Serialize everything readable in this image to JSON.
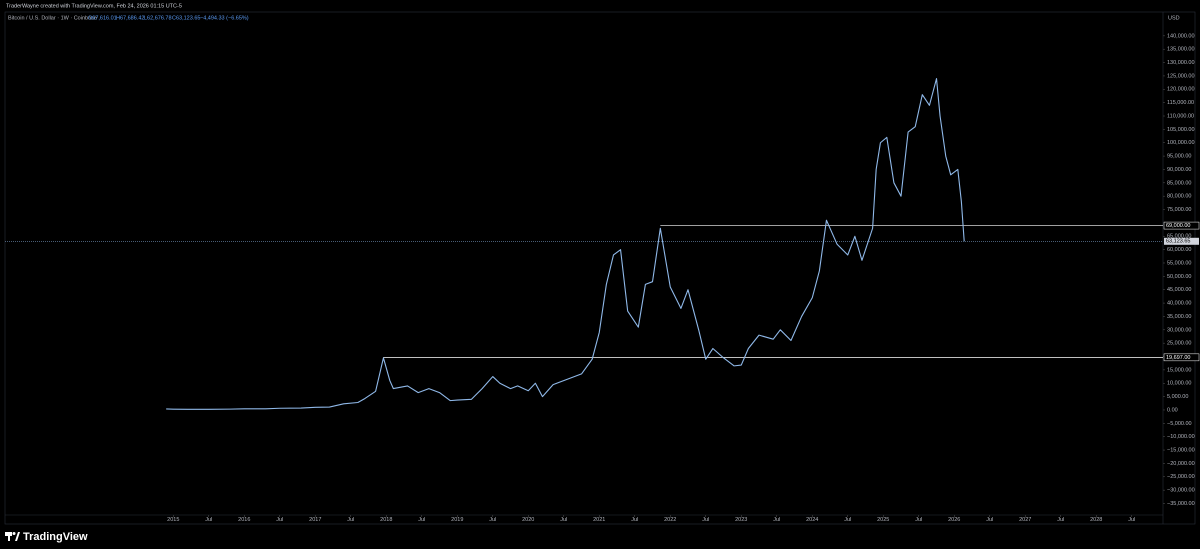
{
  "header": {
    "credit": "TraderWayne created with TradingView.com, Feb 24, 2026 01:15 UTC-5"
  },
  "legend": {
    "symbol": "Bitcoin / U.S. Dollar · 1W · Coinbase",
    "open": "O67,616.01",
    "high": "H67,686.42",
    "low": "L62,676.78",
    "close": "C63,123.65",
    "change": "−4,494.33 (−6.65%)"
  },
  "chart_data": {
    "type": "line",
    "currency": "USD",
    "color": "#8fb8e8",
    "x": [
      2014.9,
      2015.0,
      2015.2,
      2015.5,
      2015.8,
      2016.0,
      2016.3,
      2016.5,
      2016.8,
      2017.0,
      2017.2,
      2017.4,
      2017.6,
      2017.7,
      2017.85,
      2017.96,
      2018.05,
      2018.1,
      2018.3,
      2018.45,
      2018.6,
      2018.75,
      2018.9,
      2019.0,
      2019.2,
      2019.35,
      2019.5,
      2019.6,
      2019.75,
      2019.85,
      2020.0,
      2020.1,
      2020.2,
      2020.35,
      2020.55,
      2020.75,
      2020.9,
      2021.0,
      2021.1,
      2021.2,
      2021.3,
      2021.4,
      2021.55,
      2021.65,
      2021.75,
      2021.86,
      2022.0,
      2022.15,
      2022.25,
      2022.4,
      2022.5,
      2022.6,
      2022.75,
      2022.9,
      2023.0,
      2023.1,
      2023.25,
      2023.45,
      2023.55,
      2023.7,
      2023.85,
      2024.0,
      2024.1,
      2024.2,
      2024.35,
      2024.5,
      2024.6,
      2024.7,
      2024.85,
      2024.9,
      2024.96,
      2025.05,
      2025.15,
      2025.25,
      2025.35,
      2025.45,
      2025.55,
      2025.65,
      2025.75,
      2025.8,
      2025.88,
      2025.95,
      2026.05,
      2026.1,
      2026.14
    ],
    "values": [
      380,
      300,
      250,
      260,
      320,
      430,
      420,
      650,
      700,
      1000,
      1100,
      2300,
      2800,
      4300,
      7000,
      19500,
      11000,
      8000,
      9000,
      6500,
      8000,
      6500,
      3500,
      3700,
      4000,
      8000,
      12500,
      10000,
      8000,
      9000,
      7200,
      10000,
      5000,
      9500,
      11500,
      13500,
      19000,
      29000,
      47000,
      58000,
      60000,
      37000,
      31000,
      47000,
      48000,
      68000,
      46000,
      38000,
      45000,
      30000,
      19000,
      23000,
      19500,
      16500,
      16800,
      23000,
      28000,
      26500,
      30000,
      26000,
      35000,
      42000,
      52000,
      71000,
      62000,
      58000,
      65000,
      56000,
      68000,
      90000,
      100000,
      102000,
      85000,
      80000,
      104000,
      106000,
      118000,
      114000,
      124000,
      110000,
      95000,
      88000,
      90000,
      78000,
      63123.65
    ],
    "levels": [
      {
        "value": 69000,
        "label": "69,000.00",
        "from": 2021.86
      },
      {
        "value": 19697,
        "label": "19,697.00",
        "from": 2017.96
      }
    ],
    "last_price": {
      "value": 63123.65,
      "label": "63,123.65"
    },
    "xlim": [
      2012.63,
      2028.94
    ],
    "ylim": [
      -39300,
      147800
    ],
    "xticks": [
      2015,
      {
        "value": 2015.5,
        "label": "Jul"
      },
      2016,
      {
        "value": 2016.5,
        "label": "Jul"
      },
      2017,
      {
        "value": 2017.5,
        "label": "Jul"
      },
      2018,
      {
        "value": 2018.5,
        "label": "Jul"
      },
      2019,
      {
        "value": 2019.5,
        "label": "Jul"
      },
      2020,
      {
        "value": 2020.5,
        "label": "Jul"
      },
      2021,
      {
        "value": 2021.5,
        "label": "Jul"
      },
      2022,
      {
        "value": 2022.5,
        "label": "Jul"
      },
      2023,
      {
        "value": 2023.5,
        "label": "Jul"
      },
      2024,
      {
        "value": 2024.5,
        "label": "Jul"
      },
      2025,
      {
        "value": 2025.5,
        "label": "Jul"
      },
      2026,
      {
        "value": 2026.5,
        "label": "Jul"
      },
      2027,
      {
        "value": 2027.5,
        "label": "Jul"
      },
      2028,
      {
        "value": 2028.5,
        "label": "Jul"
      }
    ],
    "yticks": [
      {
        "value": 140000,
        "label": "140,000.00"
      },
      {
        "value": 135000,
        "label": "135,000.00"
      },
      {
        "value": 130000,
        "label": "130,000.00"
      },
      {
        "value": 125000,
        "label": "125,000.00"
      },
      {
        "value": 120000,
        "label": "120,000.00"
      },
      {
        "value": 115000,
        "label": "115,000.00"
      },
      {
        "value": 110000,
        "label": "110,000.00"
      },
      {
        "value": 105000,
        "label": "105,000.00"
      },
      {
        "value": 100000,
        "label": "100,000.00"
      },
      {
        "value": 95000,
        "label": "95,000.00"
      },
      {
        "value": 90000,
        "label": "90,000.00"
      },
      {
        "value": 85000,
        "label": "85,000.00"
      },
      {
        "value": 80000,
        "label": "80,000.00"
      },
      {
        "value": 75000,
        "label": "75,000.00"
      },
      {
        "value": 65000,
        "label": "65,000.00"
      },
      {
        "value": 60000,
        "label": "60,000.00"
      },
      {
        "value": 55000,
        "label": "55,000.00"
      },
      {
        "value": 50000,
        "label": "50,000.00"
      },
      {
        "value": 45000,
        "label": "45,000.00"
      },
      {
        "value": 40000,
        "label": "40,000.00"
      },
      {
        "value": 35000,
        "label": "35,000.00"
      },
      {
        "value": 30000,
        "label": "30,000.00"
      },
      {
        "value": 25000,
        "label": "25,000.00"
      },
      {
        "value": 20000,
        "label": "20,000.00"
      },
      {
        "value": 15000,
        "label": "15,000.00"
      },
      {
        "value": 10000,
        "label": "10,000.00"
      },
      {
        "value": 5000,
        "label": "5,000.00"
      },
      {
        "value": 0,
        "label": "0.00"
      },
      {
        "value": -5000,
        "label": "−5,000.00"
      },
      {
        "value": -10000,
        "label": "−10,000.00"
      },
      {
        "value": -15000,
        "label": "−15,000.00"
      },
      {
        "value": -20000,
        "label": "−20,000.00"
      },
      {
        "value": -25000,
        "label": "−25,000.00"
      },
      {
        "value": -30000,
        "label": "−30,000.00"
      },
      {
        "value": -35000,
        "label": "−35,000.00"
      }
    ]
  },
  "footer": {
    "brand": "TradingView"
  }
}
